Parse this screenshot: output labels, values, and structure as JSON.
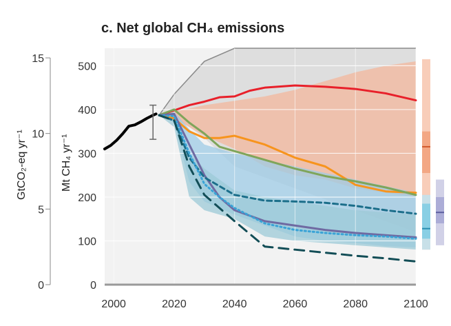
{
  "chart_data": {
    "type": "line",
    "title": "c. Net global CH₄ emissions",
    "ylabel": "Mt CH₄ yr⁻¹",
    "ylabel2": "GtCO₂-eq yr⁻¹",
    "xlim": [
      1997,
      2100
    ],
    "ylim": [
      0,
      540
    ],
    "xticks": [
      "2000",
      "2020",
      "2040",
      "2060",
      "2080",
      "2100"
    ],
    "yticks": [
      "0",
      "100",
      "200",
      "300",
      "400",
      "500"
    ],
    "y2lim": [
      0,
      15
    ],
    "y2ticks": [
      "0",
      "5",
      "10",
      "15"
    ],
    "grid": true,
    "colors": {
      "historical": "#000000",
      "red": "#e8202a",
      "orange": "#f7941d",
      "green": "#7fa55a",
      "purple": "#6f6aa2",
      "teal": "#1b6e8a",
      "dashed": "#124d56",
      "dotted": "#3aa3d6"
    },
    "bands": [
      {
        "name": "grey",
        "color": "#d7d7d7",
        "x": [
          2015,
          2020,
          2030,
          2040,
          2100
        ],
        "upper": [
          387,
          435,
          510,
          545,
          545
        ],
        "lower": [
          387,
          385,
          335,
          270,
          120
        ]
      },
      {
        "name": "orange",
        "color": "#f3b79c",
        "x": [
          2015,
          2020,
          2030,
          2040,
          2050,
          2060,
          2070,
          2080,
          2090,
          2100
        ],
        "upper": [
          387,
          395,
          410,
          420,
          430,
          445,
          465,
          485,
          500,
          510
        ],
        "lower": [
          387,
          380,
          340,
          310,
          270,
          250,
          240,
          220,
          210,
          200
        ]
      },
      {
        "name": "blue",
        "color": "#9ecbe6",
        "x": [
          2015,
          2020,
          2025,
          2030,
          2040,
          2050,
          2060,
          2070,
          2080,
          2090,
          2100
        ],
        "upper": [
          387,
          395,
          355,
          320,
          300,
          285,
          270,
          255,
          240,
          225,
          210
        ],
        "lower": [
          387,
          370,
          235,
          190,
          160,
          135,
          110,
          100,
          95,
          88,
          85
        ]
      },
      {
        "name": "teal",
        "color": "#9cc9d7",
        "x": [
          2015,
          2020,
          2025,
          2030,
          2040,
          2050,
          2060,
          2070,
          2080,
          2090,
          2100
        ],
        "upper": [
          387,
          390,
          300,
          265,
          215,
          200,
          190,
          180,
          170,
          165,
          160
        ],
        "lower": [
          387,
          360,
          200,
          170,
          150,
          110,
          100,
          95,
          90,
          85,
          80
        ]
      }
    ],
    "series": [
      {
        "key": "historical",
        "style": "solid",
        "width": 4,
        "x": [
          1997,
          1999,
          2001,
          2003,
          2005,
          2007,
          2009,
          2011,
          2013,
          2014
        ],
        "y": [
          310,
          318,
          330,
          345,
          362,
          365,
          372,
          380,
          387,
          390
        ]
      },
      {
        "key": "red",
        "style": "solid",
        "width": 3,
        "x": [
          2015,
          2020,
          2025,
          2030,
          2035,
          2040,
          2045,
          2050,
          2060,
          2070,
          2080,
          2090,
          2100
        ],
        "y": [
          387,
          398,
          410,
          418,
          428,
          430,
          443,
          450,
          455,
          452,
          447,
          437,
          421
        ]
      },
      {
        "key": "orange",
        "style": "solid",
        "width": 3,
        "x": [
          2015,
          2020,
          2025,
          2030,
          2035,
          2040,
          2050,
          2060,
          2070,
          2080,
          2090,
          2100
        ],
        "y": [
          387,
          380,
          350,
          335,
          335,
          340,
          320,
          290,
          270,
          228,
          213,
          210
        ]
      },
      {
        "key": "green",
        "style": "solid",
        "width": 3,
        "x": [
          2015,
          2020,
          2025,
          2030,
          2035,
          2040,
          2050,
          2060,
          2070,
          2080,
          2090,
          2100
        ],
        "y": [
          387,
          400,
          370,
          345,
          315,
          305,
          285,
          265,
          248,
          236,
          222,
          205
        ]
      },
      {
        "key": "purple",
        "style": "solid",
        "width": 3,
        "x": [
          2015,
          2020,
          2025,
          2030,
          2035,
          2040,
          2050,
          2060,
          2070,
          2080,
          2090,
          2100
        ],
        "y": [
          387,
          390,
          320,
          250,
          200,
          170,
          145,
          135,
          125,
          118,
          113,
          108
        ]
      },
      {
        "key": "teal",
        "style": "dash",
        "width": 3,
        "x": [
          2015,
          2020,
          2025,
          2030,
          2035,
          2040,
          2050,
          2060,
          2070,
          2080,
          2090,
          2100
        ],
        "y": [
          387,
          375,
          290,
          245,
          225,
          205,
          192,
          190,
          187,
          180,
          170,
          162
        ]
      },
      {
        "key": "dotted",
        "style": "dot",
        "width": 3,
        "x": [
          2015,
          2020,
          2025,
          2030,
          2035,
          2040,
          2050,
          2060,
          2070,
          2080,
          2090,
          2100
        ],
        "y": [
          387,
          385,
          300,
          230,
          200,
          175,
          140,
          125,
          118,
          113,
          110,
          105
        ]
      },
      {
        "key": "dashed",
        "style": "longdash",
        "width": 3,
        "x": [
          2015,
          2020,
          2025,
          2030,
          2040,
          2050,
          2060,
          2070,
          2080,
          2090,
          2100
        ],
        "y": [
          387,
          375,
          270,
          205,
          145,
          87,
          80,
          73,
          66,
          60,
          53
        ]
      }
    ],
    "errorbar": {
      "x": 2013,
      "low": 332,
      "high": 410,
      "color": "#666666"
    },
    "side_bars": [
      {
        "color": "#f7c4ad",
        "mid_color": "#f2a07a",
        "line_color": "#d2592c",
        "low": 80,
        "high": 515,
        "q1": 255,
        "q3": 350,
        "median": 315
      },
      {
        "color": "#bfe3f0",
        "mid_color": "#7ecbe3",
        "line_color": "#2a8fb2",
        "low": 80,
        "high": 205,
        "q1": 105,
        "q3": 185,
        "median": 128
      },
      {
        "color": "#c9c9e3",
        "mid_color": "#a6a7d3",
        "line_color": "#5d5fa0",
        "low": 90,
        "high": 240,
        "q1": 140,
        "q3": 200,
        "median": 165
      }
    ]
  }
}
